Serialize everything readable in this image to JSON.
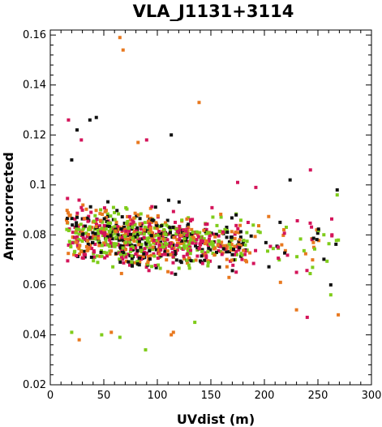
{
  "chart_data": {
    "type": "scatter",
    "title": "VLA_J1131+3114",
    "xlabel": "UVdist (m)",
    "ylabel": "Amp:corrected",
    "xlim": [
      0,
      300
    ],
    "ylim": [
      0.02,
      0.162
    ],
    "x_ticks": [
      "0",
      "50",
      "100",
      "150",
      "200",
      "250",
      "300"
    ],
    "y_ticks": [
      "0.02",
      "0.04",
      "0.06",
      "0.08",
      "0.1",
      "0.12",
      "0.14",
      "0.16"
    ],
    "grid": false,
    "series_colors": [
      "#111111",
      "#d4145a",
      "#e8781e",
      "#7fcc1a"
    ],
    "point_clusters": [
      {
        "x_range": [
          15,
          60
        ],
        "y_center": 0.081,
        "y_spread": 0.011,
        "count": 260
      },
      {
        "x_range": [
          60,
          130
        ],
        "y_center": 0.078,
        "y_spread": 0.011,
        "count": 520
      },
      {
        "x_range": [
          130,
          185
        ],
        "y_center": 0.077,
        "y_spread": 0.01,
        "count": 230
      },
      {
        "x_range": [
          185,
          270
        ],
        "y_center": 0.077,
        "y_spread": 0.011,
        "count": 60
      }
    ],
    "outliers": [
      {
        "x": 65,
        "y": 0.159,
        "color": "#e8781e"
      },
      {
        "x": 68,
        "y": 0.154,
        "color": "#e8781e"
      },
      {
        "x": 139,
        "y": 0.133,
        "color": "#e8781e"
      },
      {
        "x": 17,
        "y": 0.126,
        "color": "#d4145a"
      },
      {
        "x": 37,
        "y": 0.126,
        "color": "#111111"
      },
      {
        "x": 43,
        "y": 0.127,
        "color": "#111111"
      },
      {
        "x": 25,
        "y": 0.122,
        "color": "#111111"
      },
      {
        "x": 29,
        "y": 0.118,
        "color": "#d4145a"
      },
      {
        "x": 90,
        "y": 0.118,
        "color": "#d4145a"
      },
      {
        "x": 113,
        "y": 0.12,
        "color": "#111111"
      },
      {
        "x": 82,
        "y": 0.117,
        "color": "#e8781e"
      },
      {
        "x": 20,
        "y": 0.11,
        "color": "#111111"
      },
      {
        "x": 243,
        "y": 0.106,
        "color": "#d4145a"
      },
      {
        "x": 224,
        "y": 0.102,
        "color": "#111111"
      },
      {
        "x": 268,
        "y": 0.098,
        "color": "#111111"
      },
      {
        "x": 268,
        "y": 0.096,
        "color": "#7fcc1a"
      },
      {
        "x": 175,
        "y": 0.101,
        "color": "#d4145a"
      },
      {
        "x": 192,
        "y": 0.099,
        "color": "#d4145a"
      },
      {
        "x": 89,
        "y": 0.034,
        "color": "#7fcc1a"
      },
      {
        "x": 20,
        "y": 0.041,
        "color": "#7fcc1a"
      },
      {
        "x": 27,
        "y": 0.038,
        "color": "#e8781e"
      },
      {
        "x": 48,
        "y": 0.04,
        "color": "#7fcc1a"
      },
      {
        "x": 57,
        "y": 0.041,
        "color": "#e8781e"
      },
      {
        "x": 65,
        "y": 0.039,
        "color": "#7fcc1a"
      },
      {
        "x": 113,
        "y": 0.04,
        "color": "#e8781e"
      },
      {
        "x": 115,
        "y": 0.041,
        "color": "#e8781e"
      },
      {
        "x": 135,
        "y": 0.045,
        "color": "#7fcc1a"
      },
      {
        "x": 240,
        "y": 0.047,
        "color": "#d4145a"
      },
      {
        "x": 269,
        "y": 0.048,
        "color": "#e8781e"
      },
      {
        "x": 230,
        "y": 0.05,
        "color": "#e8781e"
      },
      {
        "x": 262,
        "y": 0.056,
        "color": "#7fcc1a"
      },
      {
        "x": 262,
        "y": 0.06,
        "color": "#111111"
      },
      {
        "x": 245,
        "y": 0.067,
        "color": "#7fcc1a"
      },
      {
        "x": 245,
        "y": 0.07,
        "color": "#e8781e"
      },
      {
        "x": 215,
        "y": 0.061,
        "color": "#e8781e"
      },
      {
        "x": 230,
        "y": 0.065,
        "color": "#d4145a"
      }
    ]
  }
}
